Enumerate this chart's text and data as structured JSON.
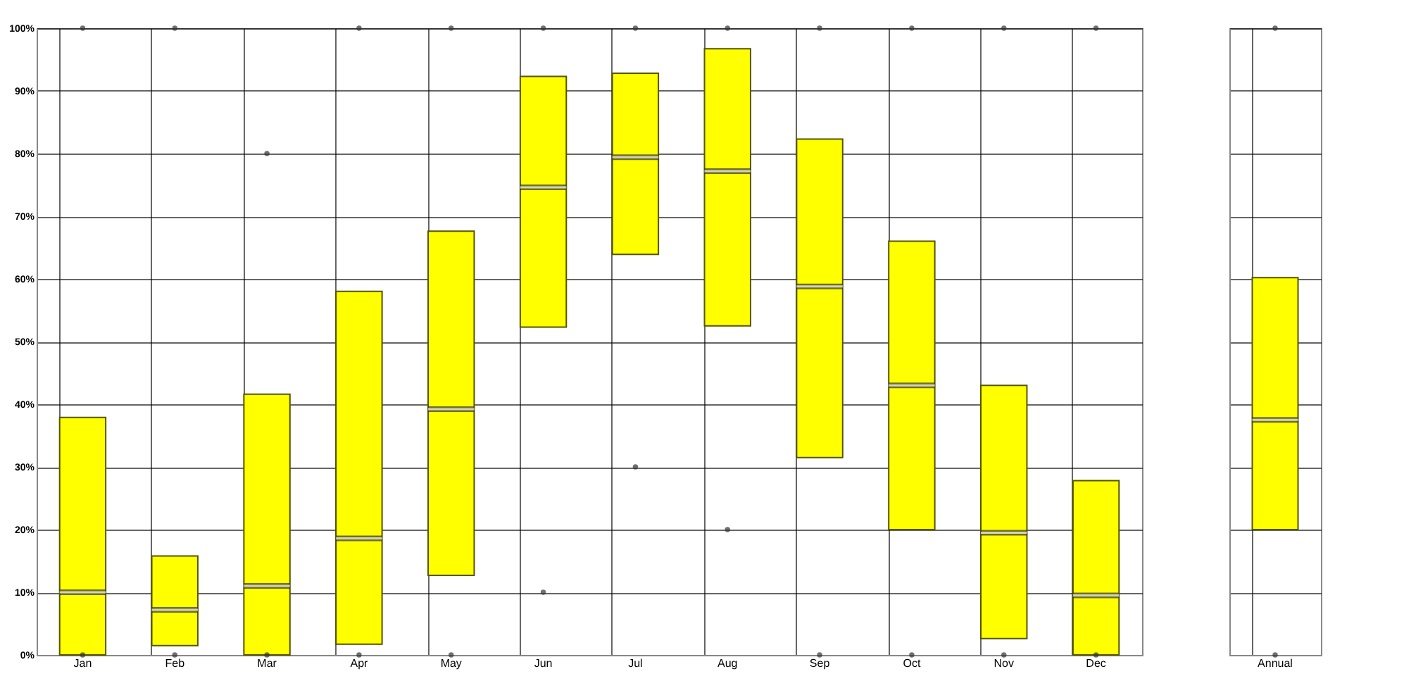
{
  "chart_data": [
    {
      "type": "box",
      "categories": [
        "Jan",
        "Feb",
        "Mar",
        "Apr",
        "May",
        "Jun",
        "Jul",
        "Aug",
        "Sep",
        "Oct",
        "Nov",
        "Dec"
      ],
      "series": [
        {
          "color": "#ffff00",
          "boxes": [
            {
              "low": 0,
              "q1": 0,
              "median": 10,
              "q3": 37.9,
              "high": 37.9,
              "outliers": [
                0,
                100
              ]
            },
            {
              "low": 1.5,
              "q1": 1.5,
              "median": 7.2,
              "q3": 15.8,
              "high": 15.8,
              "outliers": [
                0,
                100
              ]
            },
            {
              "low": 0,
              "q1": 0,
              "median": 11,
              "q3": 41.6,
              "high": 41.6,
              "outliers": [
                0,
                80
              ]
            },
            {
              "low": 1.7,
              "q1": 1.7,
              "median": 18.6,
              "q3": 58,
              "high": 58,
              "outliers": [
                0,
                100
              ]
            },
            {
              "low": 12.7,
              "q1": 12.7,
              "median": 39.2,
              "q3": 67.6,
              "high": 67.6,
              "outliers": [
                0,
                100
              ]
            },
            {
              "low": 52.3,
              "q1": 52.3,
              "median": 74.6,
              "q3": 92.3,
              "high": 92.3,
              "outliers": [
                10,
                100
              ]
            },
            {
              "low": 63.9,
              "q1": 63.9,
              "median": 79.4,
              "q3": 92.8,
              "high": 92.8,
              "outliers": [
                30,
                100
              ]
            },
            {
              "low": 52.5,
              "q1": 52.5,
              "median": 77.2,
              "q3": 96.7,
              "high": 96.7,
              "outliers": [
                20,
                100
              ]
            },
            {
              "low": 31.5,
              "q1": 31.5,
              "median": 58.8,
              "q3": 82.3,
              "high": 82.3,
              "outliers": [
                0,
                100
              ]
            },
            {
              "low": 20,
              "q1": 20,
              "median": 43,
              "q3": 66,
              "high": 66,
              "outliers": [
                0,
                100
              ]
            },
            {
              "low": 2.6,
              "q1": 2.6,
              "median": 19.5,
              "q3": 43,
              "high": 43,
              "outliers": [
                0,
                100
              ]
            },
            {
              "low": 0,
              "q1": 0,
              "median": 9.5,
              "q3": 27.8,
              "high": 27.8,
              "outliers": [
                0,
                100
              ]
            }
          ]
        }
      ],
      "ylim": [
        0,
        100
      ],
      "yticks": [
        {
          "value": 0,
          "label": "0%"
        },
        {
          "value": 10,
          "label": "10%"
        },
        {
          "value": 20,
          "label": "20%"
        },
        {
          "value": 30,
          "label": "30%"
        },
        {
          "value": 40,
          "label": "40%"
        },
        {
          "value": 50,
          "label": "50%"
        },
        {
          "value": 60,
          "label": "60%"
        },
        {
          "value": 70,
          "label": "70%"
        },
        {
          "value": 80,
          "label": "80%"
        },
        {
          "value": 90,
          "label": "90%"
        },
        {
          "value": 100,
          "label": "100%"
        }
      ],
      "grid": true
    },
    {
      "type": "box",
      "categories": [
        "Annual"
      ],
      "series": [
        {
          "color": "#ffff00",
          "boxes": [
            {
              "low": 20,
              "q1": 20,
              "median": 37.5,
              "q3": 60.2,
              "high": 60.2,
              "outliers": [
                0,
                100
              ]
            }
          ]
        }
      ],
      "ylim": [
        0,
        100
      ],
      "yticks": [
        0,
        10,
        20,
        30,
        40,
        50,
        60,
        70,
        80,
        90,
        100
      ],
      "grid": true,
      "tick_labels": "x"
    }
  ]
}
